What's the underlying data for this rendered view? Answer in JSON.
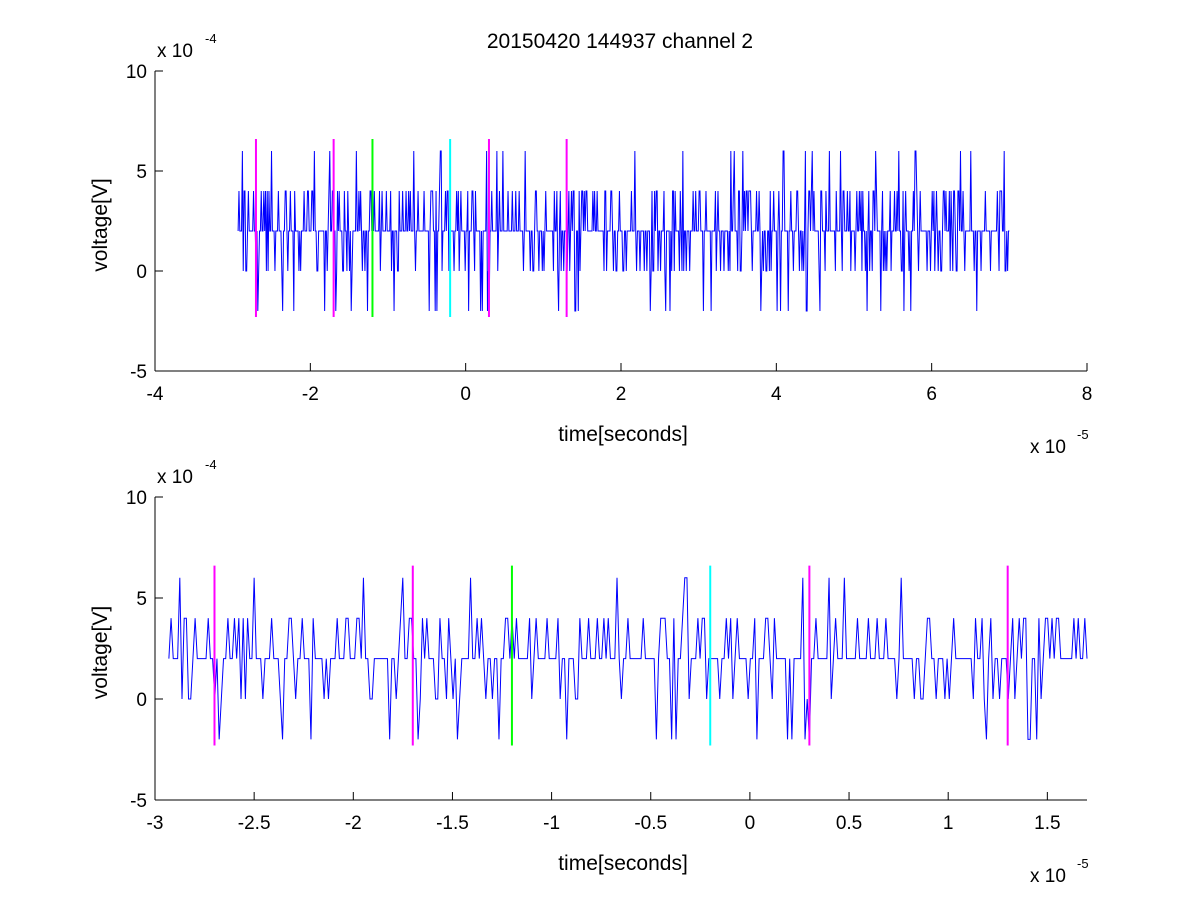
{
  "figure": {
    "title": "20150420 144937 channel 2"
  },
  "colors": {
    "signal": "#0000ff",
    "marker_magenta": "#ff00ff",
    "marker_green": "#00ff00",
    "marker_cyan": "#00ffff",
    "axis": "#000000",
    "background": "#ffffff"
  },
  "chart_data": [
    {
      "type": "line",
      "title": "20150420 144937 channel 2",
      "xlabel": "time[seconds]",
      "ylabel": "voltage[V]",
      "x_multiplier_label": "x 10",
      "x_multiplier_exponent": "-5",
      "y_multiplier_label": "x 10",
      "y_multiplier_exponent": "-4",
      "xlim": [
        -4,
        8
      ],
      "ylim": [
        -5,
        10
      ],
      "xticks": [
        -4,
        -2,
        0,
        2,
        4,
        6,
        8
      ],
      "xtick_labels": [
        "-4",
        "-2",
        "0",
        "2",
        "4",
        "6",
        "8"
      ],
      "yticks": [
        -5,
        0,
        5,
        10
      ],
      "ytick_labels": [
        "-5",
        "0",
        "5",
        "10"
      ],
      "grid": false,
      "series": [
        {
          "color": "#0000ff",
          "x_range": [
            -2.93,
            7.0
          ],
          "typical_levels": [
            0,
            2,
            4
          ],
          "max": 6,
          "min": -2
        }
      ],
      "markers": [
        {
          "x": -2.7,
          "color": "#ff00ff",
          "y_range": [
            -2.3,
            6.6
          ]
        },
        {
          "x": -1.7,
          "color": "#ff00ff",
          "y_range": [
            -2.3,
            6.6
          ]
        },
        {
          "x": -1.2,
          "color": "#00ff00",
          "y_range": [
            -2.3,
            6.6
          ]
        },
        {
          "x": -0.2,
          "color": "#00ffff",
          "y_range": [
            -2.3,
            6.6
          ]
        },
        {
          "x": 0.3,
          "color": "#ff00ff",
          "y_range": [
            -2.3,
            6.6
          ]
        },
        {
          "x": 1.3,
          "color": "#ff00ff",
          "y_range": [
            -2.3,
            6.6
          ]
        }
      ]
    },
    {
      "type": "line",
      "xlabel": "time[seconds]",
      "ylabel": "voltage[V]",
      "x_multiplier_label": "x 10",
      "x_multiplier_exponent": "-5",
      "y_multiplier_label": "x 10",
      "y_multiplier_exponent": "-4",
      "xlim": [
        -3.0,
        1.7
      ],
      "ylim": [
        -5,
        10
      ],
      "xticks": [
        -3,
        -2.5,
        -2,
        -1.5,
        -1,
        -0.5,
        0,
        0.5,
        1,
        1.5
      ],
      "xtick_labels": [
        "-3",
        "-2.5",
        "-2",
        "-1.5",
        "-1",
        "-0.5",
        "0",
        "0.5",
        "1",
        "1.5"
      ],
      "yticks": [
        -5,
        0,
        5,
        10
      ],
      "ytick_labels": [
        "-5",
        "0",
        "5",
        "10"
      ],
      "grid": false,
      "series": [
        {
          "color": "#0000ff",
          "x_range": [
            -2.93,
            1.7
          ],
          "typical_levels": [
            0,
            2,
            4
          ],
          "max": 6,
          "min": -2
        }
      ],
      "markers": [
        {
          "x": -2.7,
          "color": "#ff00ff",
          "y_range": [
            -2.3,
            6.6
          ]
        },
        {
          "x": -1.7,
          "color": "#ff00ff",
          "y_range": [
            -2.3,
            6.6
          ]
        },
        {
          "x": -1.2,
          "color": "#00ff00",
          "y_range": [
            -2.3,
            6.6
          ]
        },
        {
          "x": -0.2,
          "color": "#00ffff",
          "y_range": [
            -2.3,
            6.6
          ]
        },
        {
          "x": 0.3,
          "color": "#ff00ff",
          "y_range": [
            -2.3,
            6.6
          ]
        },
        {
          "x": 1.3,
          "color": "#ff00ff",
          "y_range": [
            -2.3,
            6.6
          ]
        }
      ]
    }
  ]
}
